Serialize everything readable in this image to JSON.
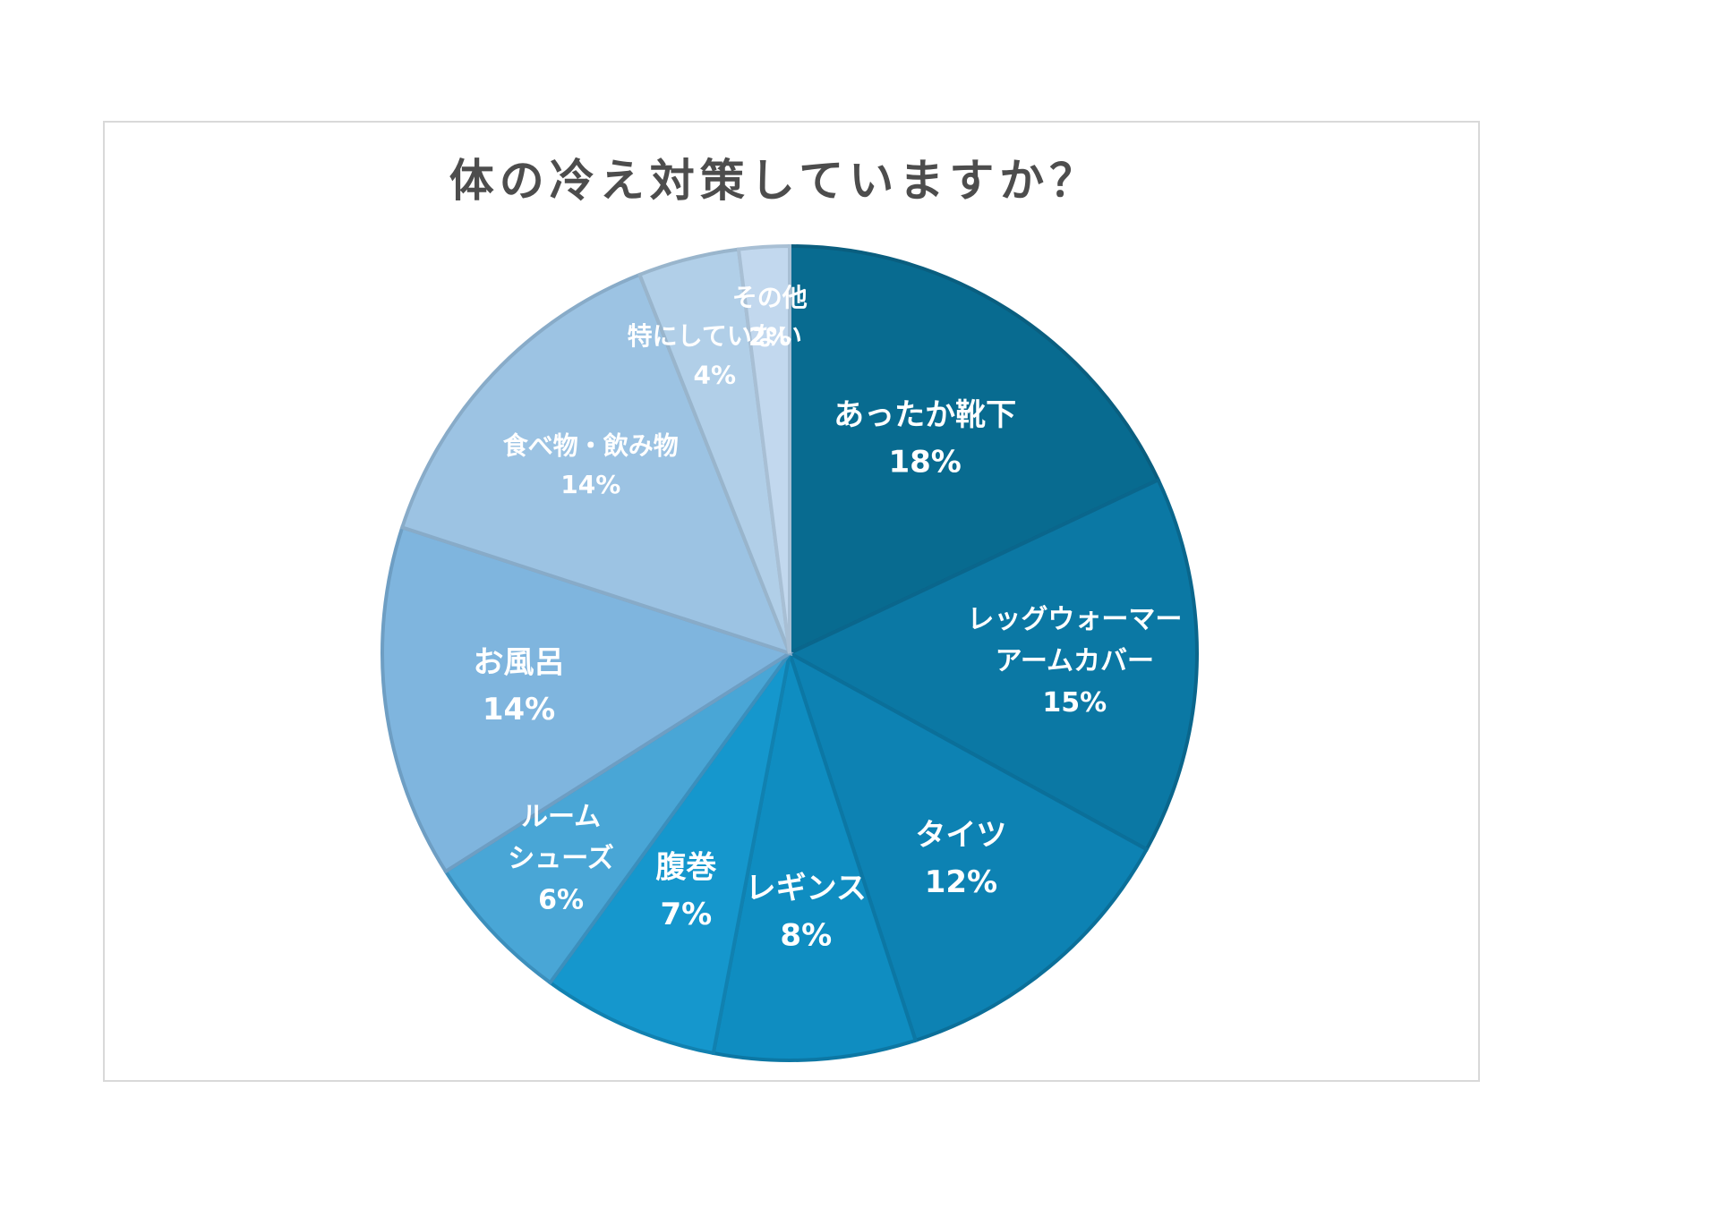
{
  "chart_data": {
    "type": "pie",
    "title": "体の冷え対策していますか？",
    "slices": [
      {
        "lines": [
          "あったか靴下"
        ],
        "pct": "18%",
        "value": 18,
        "color": "#086b90",
        "edge": "#0a5e7f",
        "size": 34
      },
      {
        "lines": [
          "レッグウォーマー",
          "アームカバー"
        ],
        "pct": "15%",
        "value": 15,
        "color": "#0b78a4",
        "edge": "#0a668c",
        "size": 30
      },
      {
        "lines": [
          "タイツ"
        ],
        "pct": "12%",
        "value": 12,
        "color": "#0d82b3",
        "edge": "#0b6f99",
        "size": 34
      },
      {
        "lines": [
          "レギンス"
        ],
        "pct": "8%",
        "value": 8,
        "color": "#0f8dc1",
        "edge": "#0c77a4",
        "size": 34
      },
      {
        "lines": [
          "腹巻"
        ],
        "pct": "7%",
        "value": 7,
        "color": "#1597cd",
        "edge": "#1181b0",
        "size": 34
      },
      {
        "lines": [
          "ルーム",
          "シューズ"
        ],
        "pct": "6%",
        "value": 6,
        "color": "#49a6d6",
        "edge": "#3c8fbc",
        "size": 30
      },
      {
        "lines": [
          "お風呂"
        ],
        "pct": "14%",
        "value": 14,
        "color": "#7fb5de",
        "edge": "#6e9ec3",
        "size": 34
      },
      {
        "lines": [
          "食べ物・飲み物"
        ],
        "pct": "14%",
        "value": 14,
        "color": "#9cc3e3",
        "edge": "#88abc8",
        "size": 28
      },
      {
        "lines": [
          "特にしていない"
        ],
        "pct": "4%",
        "value": 4,
        "color": "#b1cfe8",
        "edge": "#99b5cc",
        "size": 28
      },
      {
        "lines": [
          "その他"
        ],
        "pct": "2%",
        "value": 2,
        "color": "#c2d8ee",
        "edge": "#a8bfd4",
        "size": 28
      }
    ]
  }
}
